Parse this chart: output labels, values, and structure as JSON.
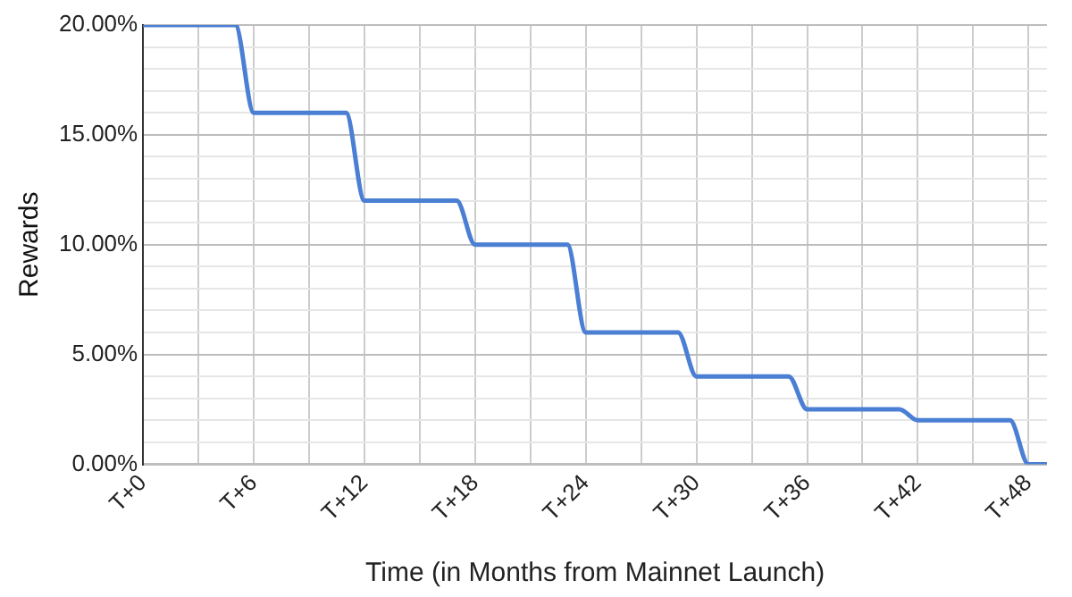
{
  "chart_data": {
    "type": "line",
    "xlabel": "Time (in Months from Mainnet Launch)",
    "ylabel": "Rewards",
    "categories": [
      "T+0",
      null,
      null,
      null,
      null,
      null,
      "T+6",
      null,
      null,
      null,
      null,
      null,
      "T+12",
      null,
      null,
      null,
      null,
      null,
      "T+18",
      null,
      null,
      null,
      null,
      null,
      "T+24",
      null,
      null,
      null,
      null,
      null,
      "T+30",
      null,
      null,
      null,
      null,
      null,
      "T+36",
      null,
      null,
      null,
      null,
      null,
      "T+42",
      null,
      null,
      null,
      null,
      null,
      "T+48",
      null
    ],
    "values": [
      20,
      20,
      20,
      20,
      20,
      20,
      16,
      16,
      16,
      16,
      16,
      16,
      12,
      12,
      12,
      12,
      12,
      12,
      10,
      10,
      10,
      10,
      10,
      10,
      6,
      6,
      6,
      6,
      6,
      6,
      4,
      4,
      4,
      4,
      4,
      4,
      2.5,
      2.5,
      2.5,
      2.5,
      2.5,
      2.5,
      2,
      2,
      2,
      2,
      2,
      2,
      0,
      0
    ],
    "color": "#4a7fd4",
    "ylim": [
      0,
      20
    ],
    "yticks": [
      {
        "value": 0,
        "label": "0.00%"
      },
      {
        "value": 1,
        "label": null
      },
      {
        "value": 2,
        "label": null
      },
      {
        "value": 3,
        "label": null
      },
      {
        "value": 4,
        "label": null
      },
      {
        "value": 5,
        "label": "5.00%"
      },
      {
        "value": 6,
        "label": null
      },
      {
        "value": 7,
        "label": null
      },
      {
        "value": 8,
        "label": null
      },
      {
        "value": 9,
        "label": null
      },
      {
        "value": 10,
        "label": "10.00%"
      },
      {
        "value": 11,
        "label": null
      },
      {
        "value": 12,
        "label": null
      },
      {
        "value": 13,
        "label": null
      },
      {
        "value": 14,
        "label": null
      },
      {
        "value": 15,
        "label": "15.00%"
      },
      {
        "value": 16,
        "label": null
      },
      {
        "value": 17,
        "label": null
      },
      {
        "value": 18,
        "label": null
      },
      {
        "value": 19,
        "label": null
      },
      {
        "value": 20,
        "label": "20.00%"
      }
    ],
    "grid": true,
    "legend": false,
    "marker": "none",
    "line_style": "solid"
  }
}
